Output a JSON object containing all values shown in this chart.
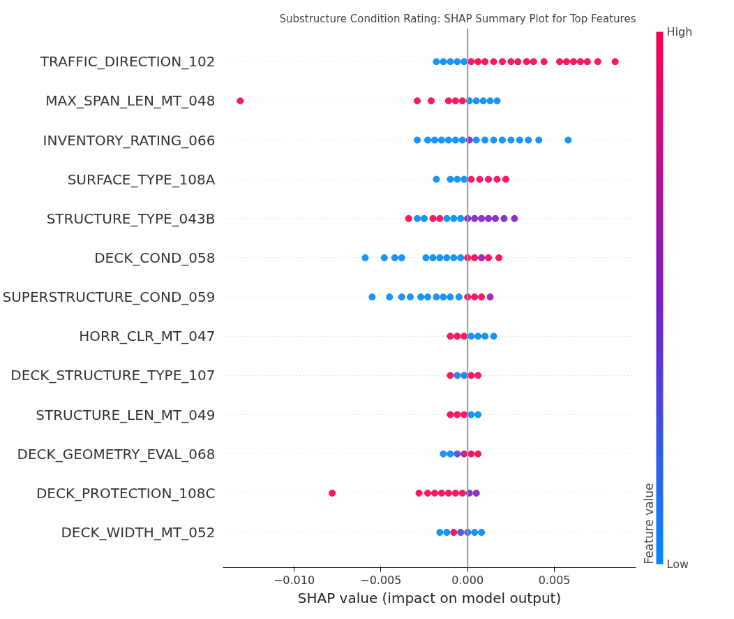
{
  "chart_data": {
    "type": "scatter",
    "orientation": "horizontal",
    "title": "Substructure Condition Rating: SHAP Summary Plot for Top Features",
    "xlabel": "SHAP value (impact on model output)",
    "clabel": "Feature value",
    "categories": [
      "TRAFFIC_DIRECTION_102",
      "MAX_SPAN_LEN_MT_048",
      "INVENTORY_RATING_066",
      "SURFACE_TYPE_108A",
      "STRUCTURE_TYPE_043B",
      "DECK_COND_058",
      "SUPERSTRUCTURE_COND_059",
      "HORR_CLR_MT_047",
      "DECK_STRUCTURE_TYPE_107",
      "STRUCTURE_LEN_MT_049",
      "DECK_GEOMETRY_EVAL_068",
      "DECK_PROTECTION_108C",
      "DECK_WIDTH_MT_052"
    ],
    "xlim": [
      -0.0141,
      0.0097
    ],
    "xticks": [
      {
        "value": -0.01,
        "label": "−0.010"
      },
      {
        "value": -0.005,
        "label": "−0.005"
      },
      {
        "value": 0,
        "label": "0.000"
      },
      {
        "value": 0.005,
        "label": "0.005"
      }
    ],
    "clim": [
      0,
      1
    ],
    "cticks": [
      {
        "value": 0,
        "label": "Low"
      },
      {
        "value": 1,
        "label": "High"
      }
    ],
    "marker": "circle",
    "grid": "y",
    "ref_lines": [
      {
        "axis": "x",
        "value": 0,
        "color": "#999999"
      }
    ],
    "series": [
      {
        "x": [
          "TRAFFIC_DIRECTION_102",
          "TRAFFIC_DIRECTION_102",
          "TRAFFIC_DIRECTION_102",
          "TRAFFIC_DIRECTION_102",
          "TRAFFIC_DIRECTION_102",
          "TRAFFIC_DIRECTION_102",
          "TRAFFIC_DIRECTION_102",
          "TRAFFIC_DIRECTION_102",
          "TRAFFIC_DIRECTION_102",
          "TRAFFIC_DIRECTION_102",
          "TRAFFIC_DIRECTION_102",
          "TRAFFIC_DIRECTION_102",
          "TRAFFIC_DIRECTION_102",
          "TRAFFIC_DIRECTION_102",
          "TRAFFIC_DIRECTION_102",
          "TRAFFIC_DIRECTION_102",
          "TRAFFIC_DIRECTION_102",
          "TRAFFIC_DIRECTION_102",
          "TRAFFIC_DIRECTION_102",
          "TRAFFIC_DIRECTION_102",
          "TRAFFIC_DIRECTION_102",
          "TRAFFIC_DIRECTION_102"
        ],
        "values": [
          -0.0018,
          -0.0014,
          -0.001,
          -0.0006,
          -0.0002,
          0.0002,
          0.0006,
          0.001,
          0.0015,
          0.002,
          0.0025,
          0.0029,
          0.0034,
          0.0038,
          0.0044,
          0.0053,
          0.0057,
          0.0061,
          0.0065,
          0.0069,
          0.0075,
          0.0085
        ],
        "cvalues": [
          0,
          0,
          0,
          0,
          0,
          1,
          1,
          1,
          1,
          1,
          1,
          1,
          1,
          1,
          1,
          1,
          1,
          1,
          1,
          1,
          1,
          1
        ],
        "colors": [
          "#008afb",
          "#008afb",
          "#008afb",
          "#008afb",
          "#008afb",
          "#ff0052",
          "#ff0052",
          "#ff0052",
          "#ff0052",
          "#ff0052",
          "#ff0052",
          "#ff0052",
          "#ff0052",
          "#ff0052",
          "#ff0052",
          "#ff0052",
          "#ff0052",
          "#ff0052",
          "#ff0052",
          "#ff0052",
          "#ff0052",
          "#ff0052"
        ]
      },
      {
        "x": [
          "MAX_SPAN_LEN_MT_048",
          "MAX_SPAN_LEN_MT_048",
          "MAX_SPAN_LEN_MT_048",
          "MAX_SPAN_LEN_MT_048",
          "MAX_SPAN_LEN_MT_048",
          "MAX_SPAN_LEN_MT_048",
          "MAX_SPAN_LEN_MT_048",
          "MAX_SPAN_LEN_MT_048",
          "MAX_SPAN_LEN_MT_048",
          "MAX_SPAN_LEN_MT_048",
          "MAX_SPAN_LEN_MT_048"
        ],
        "values": [
          -0.0131,
          -0.0029,
          -0.0021,
          -0.0011,
          -0.0007,
          -0.0003,
          0.0001,
          0.0005,
          0.0009,
          0.0013,
          0.0017
        ],
        "cvalues": [
          1,
          1,
          1,
          1,
          1,
          1,
          0,
          0,
          0,
          0,
          0
        ],
        "colors": [
          "#ff0052",
          "#ff0052",
          "#ff0052",
          "#ff0052",
          "#ff0052",
          "#ff0052",
          "#008afb",
          "#008afb",
          "#008afb",
          "#008afb",
          "#008afb"
        ]
      },
      {
        "x": [
          "INVENTORY_RATING_066",
          "INVENTORY_RATING_066",
          "INVENTORY_RATING_066",
          "INVENTORY_RATING_066",
          "INVENTORY_RATING_066",
          "INVENTORY_RATING_066",
          "INVENTORY_RATING_066",
          "INVENTORY_RATING_066",
          "INVENTORY_RATING_066",
          "INVENTORY_RATING_066",
          "INVENTORY_RATING_066",
          "INVENTORY_RATING_066",
          "INVENTORY_RATING_066",
          "INVENTORY_RATING_066",
          "INVENTORY_RATING_066",
          "INVENTORY_RATING_066",
          "INVENTORY_RATING_066"
        ],
        "values": [
          -0.0029,
          -0.0023,
          -0.0019,
          -0.0015,
          -0.0011,
          -0.0007,
          -0.0003,
          0.0001,
          0.0005,
          0.001,
          0.0015,
          0.002,
          0.0025,
          0.003,
          0.0035,
          0.0041,
          0.0058
        ],
        "cvalues": [
          0,
          0,
          0,
          0,
          0,
          0,
          0,
          0.5,
          0,
          0,
          0,
          0,
          0,
          0,
          0,
          0,
          0
        ],
        "colors": [
          "#008afb",
          "#008afb",
          "#008afb",
          "#008afb",
          "#008afb",
          "#008afb",
          "#008afb",
          "#7d1ec8",
          "#008afb",
          "#008afb",
          "#008afb",
          "#008afb",
          "#008afb",
          "#008afb",
          "#008afb",
          "#008afb",
          "#008afb"
        ]
      },
      {
        "x": [
          "SURFACE_TYPE_108A",
          "SURFACE_TYPE_108A",
          "SURFACE_TYPE_108A",
          "SURFACE_TYPE_108A",
          "SURFACE_TYPE_108A",
          "SURFACE_TYPE_108A",
          "SURFACE_TYPE_108A",
          "SURFACE_TYPE_108A",
          "SURFACE_TYPE_108A"
        ],
        "values": [
          -0.0018,
          -0.001,
          -0.0006,
          -0.0002,
          0.0002,
          0.0007,
          0.0012,
          0.0017,
          0.0022
        ],
        "cvalues": [
          0,
          0,
          0,
          0,
          1,
          1,
          1,
          1,
          1
        ],
        "colors": [
          "#008afb",
          "#008afb",
          "#008afb",
          "#008afb",
          "#ff0052",
          "#ff0052",
          "#ff0052",
          "#ff0052",
          "#ff0052"
        ]
      },
      {
        "x": [
          "STRUCTURE_TYPE_043B",
          "STRUCTURE_TYPE_043B",
          "STRUCTURE_TYPE_043B",
          "STRUCTURE_TYPE_043B",
          "STRUCTURE_TYPE_043B",
          "STRUCTURE_TYPE_043B",
          "STRUCTURE_TYPE_043B",
          "STRUCTURE_TYPE_043B",
          "STRUCTURE_TYPE_043B",
          "STRUCTURE_TYPE_043B",
          "STRUCTURE_TYPE_043B",
          "STRUCTURE_TYPE_043B",
          "STRUCTURE_TYPE_043B",
          "STRUCTURE_TYPE_043B",
          "STRUCTURE_TYPE_043B"
        ],
        "values": [
          -0.0034,
          -0.0029,
          -0.0025,
          -0.002,
          -0.0016,
          -0.0012,
          -0.0008,
          -0.0004,
          0,
          0.0004,
          0.0008,
          0.0012,
          0.0016,
          0.0021,
          0.0027
        ],
        "cvalues": [
          1,
          0,
          0,
          1,
          1,
          0,
          0,
          0,
          0.5,
          0.5,
          0.5,
          0.5,
          0.5,
          0.5,
          0.5
        ],
        "colors": [
          "#ff0052",
          "#008afb",
          "#008afb",
          "#ff0052",
          "#ff0052",
          "#008afb",
          "#008afb",
          "#008afb",
          "#7d1ec8",
          "#7d1ec8",
          "#7d1ec8",
          "#7d1ec8",
          "#7d1ec8",
          "#7d1ec8",
          "#7d1ec8"
        ]
      },
      {
        "x": [
          "DECK_COND_058",
          "DECK_COND_058",
          "DECK_COND_058",
          "DECK_COND_058",
          "DECK_COND_058",
          "DECK_COND_058",
          "DECK_COND_058",
          "DECK_COND_058",
          "DECK_COND_058",
          "DECK_COND_058",
          "DECK_COND_058",
          "DECK_COND_058",
          "DECK_COND_058",
          "DECK_COND_058",
          "DECK_COND_058"
        ],
        "values": [
          -0.0059,
          -0.0048,
          -0.0042,
          -0.0038,
          -0.0024,
          -0.002,
          -0.0016,
          -0.0012,
          -0.0008,
          -0.0004,
          0,
          0.0004,
          0.0008,
          0.0012,
          0.0018
        ],
        "cvalues": [
          0,
          0,
          0,
          0,
          0,
          0,
          0,
          0,
          0,
          0,
          1,
          1,
          0.6,
          1,
          1
        ],
        "colors": [
          "#008afb",
          "#008afb",
          "#008afb",
          "#008afb",
          "#008afb",
          "#008afb",
          "#008afb",
          "#008afb",
          "#008afb",
          "#008afb",
          "#ff0052",
          "#ff0052",
          "#9618b0",
          "#ff0052",
          "#ff0052"
        ]
      },
      {
        "x": [
          "SUPERSTRUCTURE_COND_059",
          "SUPERSTRUCTURE_COND_059",
          "SUPERSTRUCTURE_COND_059",
          "SUPERSTRUCTURE_COND_059",
          "SUPERSTRUCTURE_COND_059",
          "SUPERSTRUCTURE_COND_059",
          "SUPERSTRUCTURE_COND_059",
          "SUPERSTRUCTURE_COND_059",
          "SUPERSTRUCTURE_COND_059",
          "SUPERSTRUCTURE_COND_059",
          "SUPERSTRUCTURE_COND_059",
          "SUPERSTRUCTURE_COND_059",
          "SUPERSTRUCTURE_COND_059",
          "SUPERSTRUCTURE_COND_059"
        ],
        "values": [
          -0.0055,
          -0.0045,
          -0.0038,
          -0.0033,
          -0.0027,
          -0.0023,
          -0.0018,
          -0.0014,
          -0.001,
          -0.0005,
          0,
          0.0004,
          0.0008,
          0.0013
        ],
        "cvalues": [
          0,
          0,
          0,
          0,
          0,
          0,
          0,
          0,
          0,
          0,
          1,
          1,
          1,
          0.6
        ],
        "colors": [
          "#008afb",
          "#008afb",
          "#008afb",
          "#008afb",
          "#008afb",
          "#008afb",
          "#008afb",
          "#008afb",
          "#008afb",
          "#008afb",
          "#ff0052",
          "#ff0052",
          "#ff0052",
          "#9618b0"
        ]
      },
      {
        "x": [
          "HORR_CLR_MT_047",
          "HORR_CLR_MT_047",
          "HORR_CLR_MT_047",
          "HORR_CLR_MT_047",
          "HORR_CLR_MT_047",
          "HORR_CLR_MT_047",
          "HORR_CLR_MT_047"
        ],
        "values": [
          -0.001,
          -0.0006,
          -0.0002,
          0.0002,
          0.0006,
          0.001,
          0.0015
        ],
        "cvalues": [
          1,
          1,
          1,
          0,
          0,
          0,
          0
        ],
        "colors": [
          "#ff0052",
          "#ff0052",
          "#ff0052",
          "#008afb",
          "#008afb",
          "#008afb",
          "#008afb"
        ]
      },
      {
        "x": [
          "DECK_STRUCTURE_TYPE_107",
          "DECK_STRUCTURE_TYPE_107",
          "DECK_STRUCTURE_TYPE_107",
          "DECK_STRUCTURE_TYPE_107",
          "DECK_STRUCTURE_TYPE_107"
        ],
        "values": [
          -0.001,
          -0.0006,
          -0.0002,
          0.0002,
          0.0006
        ],
        "cvalues": [
          1,
          0.1,
          0.1,
          1,
          1
        ],
        "colors": [
          "#ff0052",
          "#1875f1",
          "#1875f1",
          "#ff0052",
          "#ff0052"
        ]
      },
      {
        "x": [
          "STRUCTURE_LEN_MT_049",
          "STRUCTURE_LEN_MT_049",
          "STRUCTURE_LEN_MT_049",
          "STRUCTURE_LEN_MT_049",
          "STRUCTURE_LEN_MT_049"
        ],
        "values": [
          -0.001,
          -0.0006,
          -0.0002,
          0.0002,
          0.0006
        ],
        "cvalues": [
          1,
          1,
          1,
          0,
          0
        ],
        "colors": [
          "#ff0052",
          "#ff0052",
          "#ff0052",
          "#008afb",
          "#008afb"
        ]
      },
      {
        "x": [
          "DECK_GEOMETRY_EVAL_068",
          "DECK_GEOMETRY_EVAL_068",
          "DECK_GEOMETRY_EVAL_068",
          "DECK_GEOMETRY_EVAL_068",
          "DECK_GEOMETRY_EVAL_068",
          "DECK_GEOMETRY_EVAL_068"
        ],
        "values": [
          -0.0014,
          -0.001,
          -0.0006,
          -0.0002,
          0.0002,
          0.0006
        ],
        "cvalues": [
          0,
          0,
          0.3,
          0.8,
          1,
          1
        ],
        "colors": [
          "#008afb",
          "#008afb",
          "#4a4add",
          "#cb0c81",
          "#ff0052",
          "#ff0052"
        ]
      },
      {
        "x": [
          "DECK_PROTECTION_108C",
          "DECK_PROTECTION_108C",
          "DECK_PROTECTION_108C",
          "DECK_PROTECTION_108C",
          "DECK_PROTECTION_108C",
          "DECK_PROTECTION_108C",
          "DECK_PROTECTION_108C",
          "DECK_PROTECTION_108C",
          "DECK_PROTECTION_108C",
          "DECK_PROTECTION_108C"
        ],
        "values": [
          -0.0078,
          -0.0028,
          -0.0023,
          -0.0019,
          -0.0015,
          -0.0011,
          -0.0007,
          -0.0003,
          0.0001,
          0.0005
        ],
        "cvalues": [
          1,
          1,
          1,
          1,
          1,
          1,
          1,
          1,
          0.5,
          0.5
        ],
        "colors": [
          "#ff0052",
          "#ff0052",
          "#ff0052",
          "#ff0052",
          "#ff0052",
          "#ff0052",
          "#ff0052",
          "#ff0052",
          "#7d1ec8",
          "#7d1ec8"
        ]
      },
      {
        "x": [
          "DECK_WIDTH_MT_052",
          "DECK_WIDTH_MT_052",
          "DECK_WIDTH_MT_052",
          "DECK_WIDTH_MT_052",
          "DECK_WIDTH_MT_052",
          "DECK_WIDTH_MT_052",
          "DECK_WIDTH_MT_052"
        ],
        "values": [
          -0.0016,
          -0.0012,
          -0.0008,
          -0.0004,
          0,
          0.0004,
          0.0008
        ],
        "cvalues": [
          0,
          0,
          1,
          0.3,
          0.2,
          0,
          0
        ],
        "colors": [
          "#008afb",
          "#008afb",
          "#ff0052",
          "#4a4add",
          "#325fe7",
          "#008afb",
          "#008afb"
        ]
      }
    ]
  }
}
